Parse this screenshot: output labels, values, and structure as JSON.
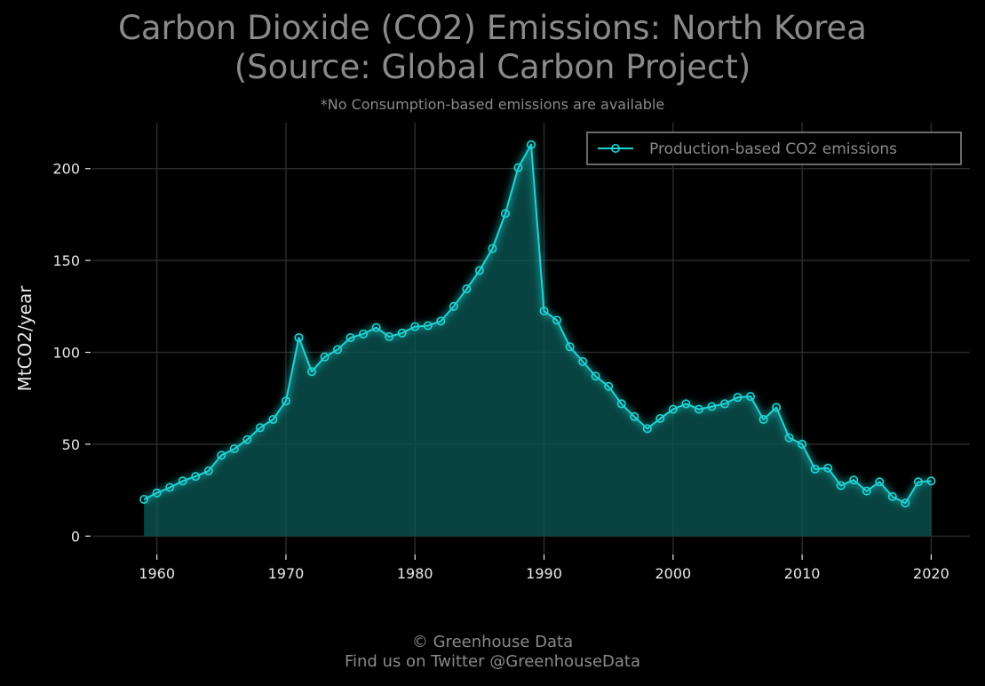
{
  "header": {
    "title_line1": "Carbon Dioxide (CO2) Emissions: North Korea",
    "title_line2": "(Source: Global Carbon Project)",
    "subtitle": "*No Consumption-based emissions are available"
  },
  "footer": {
    "line1": "© Greenhouse Data",
    "line2": "Find us on Twitter @GreenhouseData"
  },
  "colors": {
    "background": "#000000",
    "line": "#1fd4d4",
    "fill": "#0b5a57",
    "grid": "#2a2a2a",
    "text": "#e8e8e8",
    "muted_text": "#8a8a8a",
    "legend_border": "#8a8a8a"
  },
  "chart_data": {
    "type": "area",
    "ylabel": "MtCO2/year",
    "xlim": [
      1955,
      2023
    ],
    "ylim": [
      -10,
      225
    ],
    "x_ticks": [
      1960,
      1970,
      1980,
      1990,
      2000,
      2010,
      2020
    ],
    "y_ticks": [
      0,
      50,
      100,
      150,
      200
    ],
    "grid": true,
    "legend": {
      "position": "top-right",
      "entries": [
        "Production-based CO2 emissions"
      ]
    },
    "series": [
      {
        "name": "Production-based CO2 emissions",
        "x": [
          1959,
          1960,
          1961,
          1962,
          1963,
          1964,
          1965,
          1966,
          1967,
          1968,
          1969,
          1970,
          1971,
          1972,
          1973,
          1974,
          1975,
          1976,
          1977,
          1978,
          1979,
          1980,
          1981,
          1982,
          1983,
          1984,
          1985,
          1986,
          1987,
          1988,
          1989,
          1990,
          1991,
          1992,
          1993,
          1994,
          1995,
          1996,
          1997,
          1998,
          1999,
          2000,
          2001,
          2002,
          2003,
          2004,
          2005,
          2006,
          2007,
          2008,
          2009,
          2010,
          2011,
          2012,
          2013,
          2014,
          2015,
          2016,
          2017,
          2018,
          2019,
          2020
        ],
        "values": [
          20,
          23.5,
          26.5,
          30,
          32.5,
          35.5,
          44,
          47.5,
          52.5,
          59,
          63.5,
          73.5,
          108,
          89.5,
          97.5,
          101.5,
          108,
          110,
          113.5,
          108.5,
          110.5,
          114,
          114.5,
          117,
          125,
          134.5,
          144.5,
          156.5,
          175.5,
          200.5,
          213,
          122.5,
          117.5,
          103,
          95,
          87,
          81.5,
          72,
          65,
          58.5,
          64,
          69,
          72,
          69,
          70.5,
          72,
          75.5,
          76,
          63.5,
          70,
          53.5,
          50,
          36.5,
          37,
          27.5,
          30.5,
          24.5,
          29.5,
          21.5,
          18,
          29.5,
          30
        ]
      }
    ]
  }
}
